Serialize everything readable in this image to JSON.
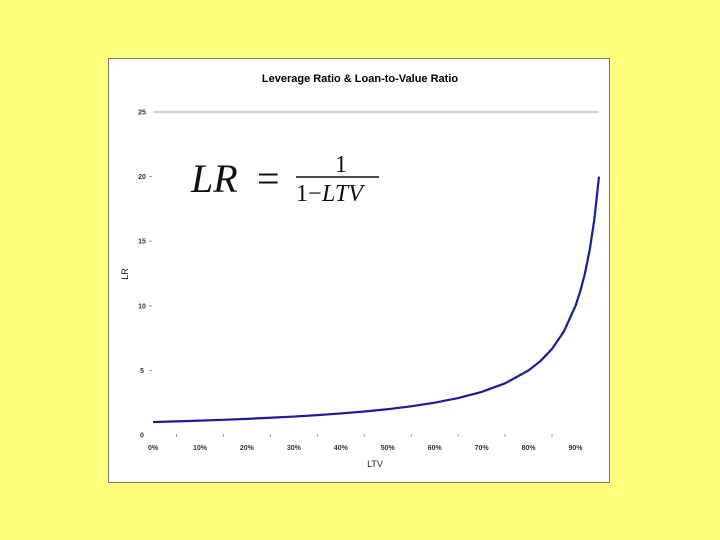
{
  "chart_data": {
    "type": "line",
    "title": "Leverage Ratio & Loan-to-Value Ratio",
    "xlabel": "LTV",
    "ylabel": "LR",
    "xlim": [
      0,
      0.95
    ],
    "ylim": [
      0,
      25
    ],
    "x_ticks": [
      {
        "value": 0.0,
        "label": "0%"
      },
      {
        "value": 0.1,
        "label": "10%"
      },
      {
        "value": 0.2,
        "label": "20%"
      },
      {
        "value": 0.3,
        "label": "30%"
      },
      {
        "value": 0.4,
        "label": "40%"
      },
      {
        "value": 0.5,
        "label": "50%"
      },
      {
        "value": 0.6,
        "label": "60%"
      },
      {
        "value": 0.7,
        "label": "70%"
      },
      {
        "value": 0.8,
        "label": "80%"
      },
      {
        "value": 0.9,
        "label": "90%"
      }
    ],
    "y_ticks": [
      {
        "value": 0,
        "label": "0"
      },
      {
        "value": 5,
        "label": "5"
      },
      {
        "value": 10,
        "label": "10"
      },
      {
        "value": 15,
        "label": "15"
      },
      {
        "value": 20,
        "label": "20"
      },
      {
        "value": 25,
        "label": "25"
      }
    ],
    "grid": false,
    "legend": "none",
    "series": [
      {
        "color": "#1a1aa0",
        "x": [
          0.0,
          0.05,
          0.1,
          0.15,
          0.2,
          0.25,
          0.3,
          0.35,
          0.4,
          0.45,
          0.5,
          0.55,
          0.6,
          0.65,
          0.7,
          0.75,
          0.8,
          0.825,
          0.85,
          0.875,
          0.9,
          0.91,
          0.92,
          0.93,
          0.94,
          0.95
        ],
        "y": [
          1.0,
          1.053,
          1.111,
          1.176,
          1.25,
          1.333,
          1.429,
          1.538,
          1.667,
          1.818,
          2.0,
          2.222,
          2.5,
          2.857,
          3.333,
          4.0,
          5.0,
          5.714,
          6.667,
          8.0,
          10.0,
          11.111,
          12.5,
          14.286,
          16.667,
          20.0
        ]
      }
    ],
    "annotation": {
      "lhs": "LR",
      "equals": "=",
      "numerator": "1",
      "denominator_one": "1",
      "denominator_minus": "−",
      "denominator_var": "LTV"
    }
  }
}
